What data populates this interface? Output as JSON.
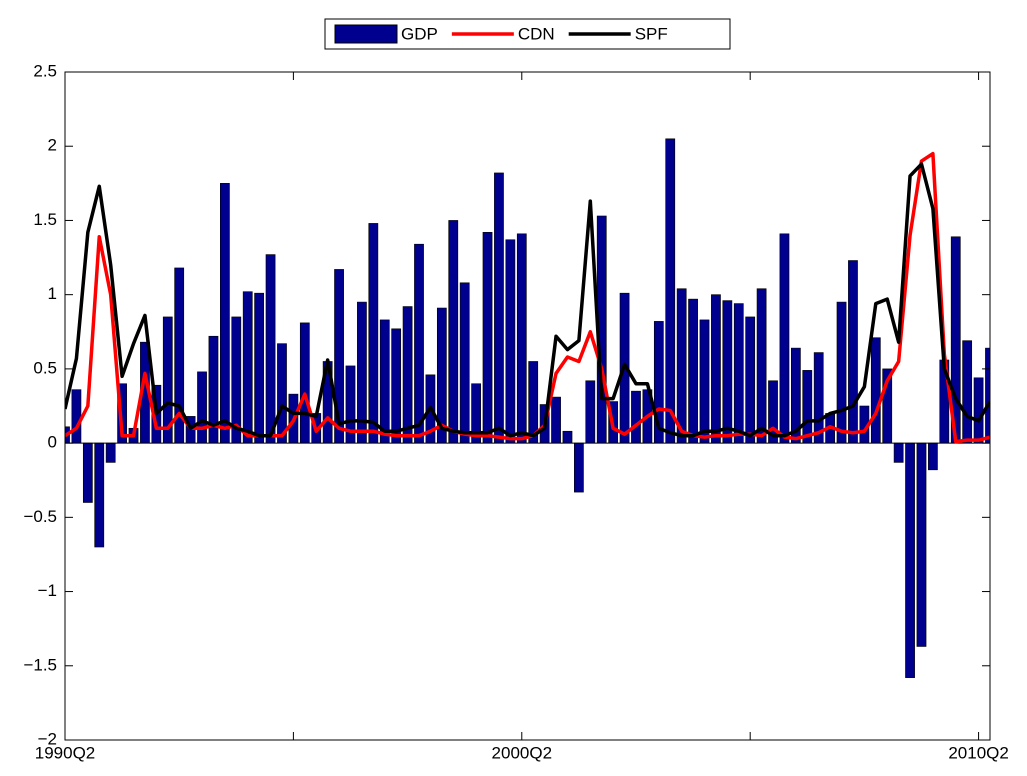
{
  "chart_data": {
    "type": "bar-line",
    "categories": [
      "1990Q2",
      null,
      null,
      null,
      null,
      null,
      null,
      null,
      null,
      null,
      null,
      null,
      null,
      null,
      null,
      null,
      null,
      null,
      null,
      null,
      null,
      null,
      null,
      null,
      null,
      null,
      null,
      null,
      null,
      null,
      null,
      null,
      null,
      null,
      null,
      null,
      null,
      null,
      null,
      null,
      "2000Q2",
      null,
      null,
      null,
      null,
      null,
      null,
      null,
      null,
      null,
      null,
      null,
      null,
      null,
      null,
      null,
      null,
      null,
      null,
      null,
      null,
      null,
      null,
      null,
      null,
      null,
      null,
      null,
      null,
      null,
      null,
      null,
      null,
      null,
      null,
      null,
      null,
      null,
      null,
      null,
      "2010Q2",
      null
    ],
    "series": [
      {
        "name": "GDP",
        "kind": "bar",
        "color": "#00008f",
        "values": [
          0.11,
          0.36,
          -0.4,
          -0.7,
          -0.13,
          0.4,
          0.1,
          0.68,
          0.39,
          0.85,
          1.18,
          0.18,
          0.48,
          0.72,
          1.75,
          0.85,
          1.02,
          1.01,
          1.27,
          0.67,
          0.33,
          0.81,
          0.2,
          0.55,
          1.17,
          0.52,
          0.95,
          1.48,
          0.83,
          0.77,
          0.92,
          1.34,
          0.46,
          0.91,
          1.5,
          1.08,
          0.4,
          1.42,
          1.82,
          1.37,
          1.41,
          0.55,
          0.26,
          0.31,
          0.08,
          -0.33,
          0.42,
          1.53,
          0.28,
          1.01,
          0.35,
          0.36,
          0.82,
          2.05,
          1.04,
          0.97,
          0.83,
          1.0,
          0.96,
          0.94,
          0.85,
          1.04,
          0.42,
          1.41,
          0.64,
          0.49,
          0.61,
          0.2,
          0.95,
          1.23,
          0.25,
          0.71,
          0.5,
          -0.13,
          -1.58,
          -1.37,
          -0.18,
          0.56,
          1.39,
          0.69,
          0.44,
          0.64
        ]
      },
      {
        "name": "CDN",
        "kind": "line",
        "color": "#ff0000",
        "values": [
          0.05,
          0.1,
          0.25,
          1.39,
          1.0,
          0.05,
          0.05,
          0.47,
          0.1,
          0.1,
          0.2,
          0.1,
          0.1,
          0.12,
          0.1,
          0.12,
          0.05,
          0.05,
          0.05,
          0.05,
          0.15,
          0.33,
          0.08,
          0.17,
          0.1,
          0.08,
          0.08,
          0.08,
          0.06,
          0.05,
          0.05,
          0.05,
          0.08,
          0.12,
          0.08,
          0.06,
          0.05,
          0.05,
          0.04,
          0.03,
          0.03,
          0.05,
          0.12,
          0.47,
          0.58,
          0.55,
          0.75,
          0.5,
          0.1,
          0.06,
          0.12,
          0.18,
          0.23,
          0.22,
          0.08,
          0.05,
          0.04,
          0.05,
          0.05,
          0.06,
          0.06,
          0.05,
          0.1,
          0.04,
          0.03,
          0.05,
          0.07,
          0.11,
          0.08,
          0.07,
          0.08,
          0.2,
          0.42,
          0.55,
          1.4,
          1.9,
          1.95,
          0.6,
          0.01,
          0.02,
          0.02,
          0.04
        ]
      },
      {
        "name": "SPF",
        "kind": "line",
        "color": "#000000",
        "values": [
          0.23,
          0.57,
          1.42,
          1.73,
          1.2,
          0.45,
          0.67,
          0.86,
          0.2,
          0.27,
          0.25,
          0.1,
          0.15,
          0.12,
          0.15,
          0.1,
          0.08,
          0.05,
          0.05,
          0.25,
          0.2,
          0.2,
          0.18,
          0.56,
          0.13,
          0.15,
          0.15,
          0.14,
          0.08,
          0.08,
          0.1,
          0.12,
          0.24,
          0.1,
          0.08,
          0.07,
          0.07,
          0.07,
          0.1,
          0.05,
          0.07,
          0.05,
          0.1,
          0.72,
          0.63,
          0.69,
          1.63,
          0.3,
          0.3,
          0.53,
          0.4,
          0.4,
          0.1,
          0.07,
          0.05,
          0.05,
          0.08,
          0.08,
          0.1,
          0.08,
          0.05,
          0.1,
          0.05,
          0.05,
          0.08,
          0.15,
          0.15,
          0.2,
          0.22,
          0.25,
          0.38,
          0.94,
          0.97,
          0.68,
          1.8,
          1.88,
          1.58,
          0.5,
          0.3,
          0.18,
          0.15,
          0.28
        ]
      }
    ],
    "ylim": [
      -2,
      2.5
    ],
    "yticks": [
      {
        "value": -2,
        "label": "−2"
      },
      {
        "value": -1.5,
        "label": "−1.5"
      },
      {
        "value": -1,
        "label": "−1"
      },
      {
        "value": -0.5,
        "label": "−0.5"
      },
      0,
      0.5,
      1,
      1.5,
      2,
      2.5
    ],
    "legend": "top"
  }
}
